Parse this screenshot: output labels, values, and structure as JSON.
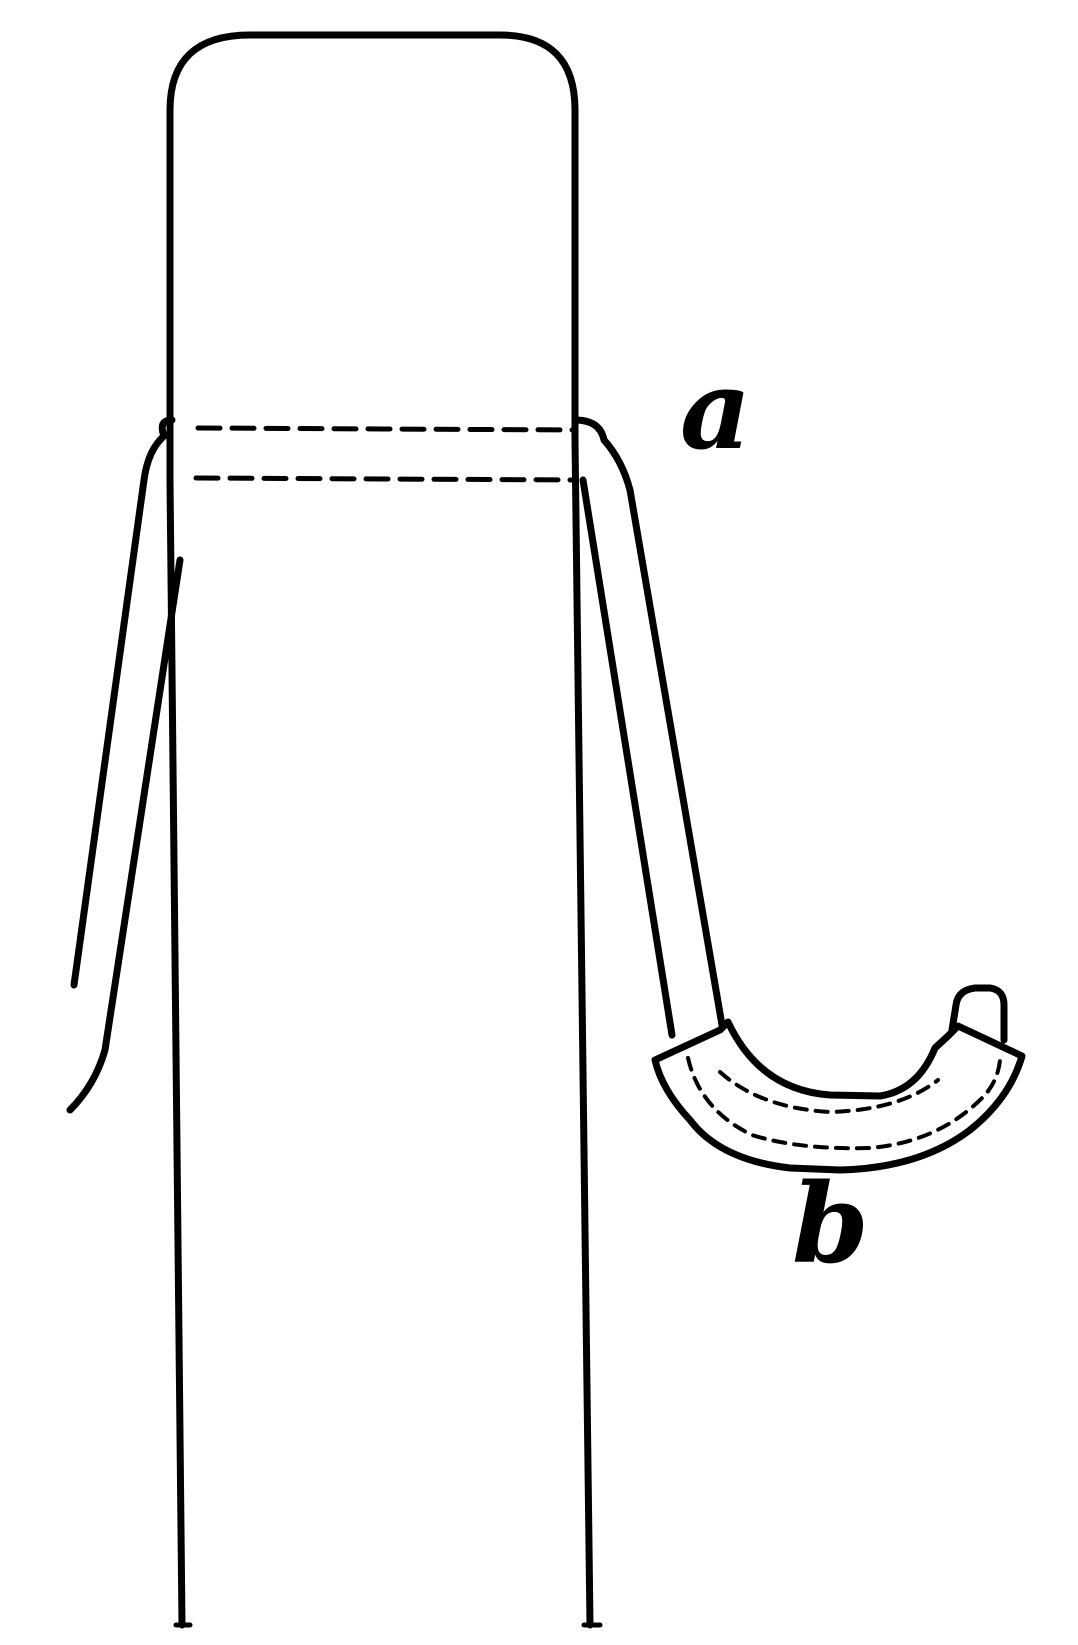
{
  "labels": {
    "a": "a",
    "b": "b"
  },
  "colors": {
    "ink": "#000000",
    "paper": "#ffffff"
  }
}
